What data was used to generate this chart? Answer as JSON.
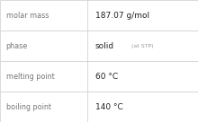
{
  "rows": [
    {
      "label": "molar mass",
      "value": "187.07 g/mol",
      "value2": null
    },
    {
      "label": "phase",
      "value": "solid",
      "value2": "(at STP)"
    },
    {
      "label": "melting point",
      "value": "60 °C",
      "value2": null
    },
    {
      "label": "boiling point",
      "value": "140 °C",
      "value2": null
    }
  ],
  "background_color": "#ffffff",
  "border_color": "#cccccc",
  "label_color": "#777777",
  "value_color": "#222222",
  "value2_color": "#999999",
  "label_fontsize": 5.8,
  "value_fontsize": 6.5,
  "value2_fontsize": 4.5,
  "col_split": 0.44
}
